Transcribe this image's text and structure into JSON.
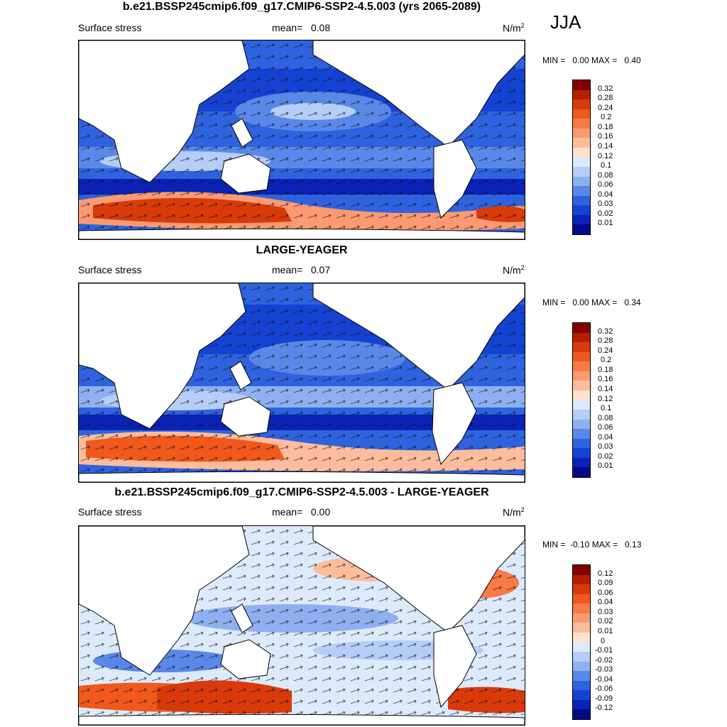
{
  "season": "JJA",
  "panels": [
    {
      "title": "b.e21.BSSP245cmip6.f09_g17.CMIP6-SSP2-4.5.003 (yrs 2065-2089)",
      "variable": "Surface stress",
      "mean_label": "mean=",
      "mean_value": "0.08",
      "units_base": "N/m",
      "units_exp": "2",
      "minmax": "MIN =   0.00 MAX =   0.40",
      "colorbar": {
        "colors": [
          "#830000",
          "#b41f00",
          "#d93a0a",
          "#f0581c",
          "#f77a47",
          "#fb9a72",
          "#fdbd9c",
          "#fde2cc",
          "#ddeafc",
          "#b5cdf7",
          "#8eb0f0",
          "#5a88e8",
          "#2f62df",
          "#1442d2",
          "#0a22b5",
          "#020a8a"
        ],
        "ticks": [
          "0.32",
          "0.28",
          "0.24",
          "0.2",
          "0.18",
          "0.16",
          "0.14",
          "0.12",
          "0.1",
          "0.08",
          "0.06",
          "0.04",
          "0.03",
          "0.02",
          "0.01"
        ]
      }
    },
    {
      "title": "LARGE-YEAGER",
      "variable": "Surface stress",
      "mean_label": "mean=",
      "mean_value": "0.07",
      "units_base": "N/m",
      "units_exp": "2",
      "minmax": "MIN =   0.00 MAX =   0.34",
      "colorbar": {
        "colors": [
          "#830000",
          "#b41f00",
          "#d93a0a",
          "#f0581c",
          "#f77a47",
          "#fb9a72",
          "#fdbd9c",
          "#fde2cc",
          "#ddeafc",
          "#b5cdf7",
          "#8eb0f0",
          "#5a88e8",
          "#2f62df",
          "#1442d2",
          "#0a22b5",
          "#020a8a"
        ],
        "ticks": [
          "0.32",
          "0.28",
          "0.24",
          "0.2",
          "0.18",
          "0.16",
          "0.14",
          "0.12",
          "0.1",
          "0.08",
          "0.06",
          "0.04",
          "0.03",
          "0.02",
          "0.01"
        ]
      }
    },
    {
      "title": "b.e21.BSSP245cmip6.f09_g17.CMIP6-SSP2-4.5.003 - LARGE-YEAGER",
      "variable": "Surface stress",
      "mean_label": "mean=",
      "mean_value": "0.00",
      "units_base": "N/m",
      "units_exp": "2",
      "minmax": "MIN =  -0.10 MAX =   0.13",
      "colorbar": {
        "colors": [
          "#830000",
          "#b41f00",
          "#d93a0a",
          "#f0581c",
          "#f77a47",
          "#fb9a72",
          "#fdbd9c",
          "#fde2cc",
          "#ddeafc",
          "#b5cdf7",
          "#8eb0f0",
          "#5a88e8",
          "#2f62df",
          "#1442d2",
          "#0a22b5",
          "#020a8a"
        ],
        "ticks": [
          "0.12",
          "0.09",
          "0.06",
          "0.04",
          "0.03",
          "0.02",
          "0.01",
          "0",
          "-0.01",
          "-0.02",
          "-0.03",
          "-0.04",
          "-0.06",
          "-0.09",
          "-0.12"
        ]
      }
    }
  ]
}
